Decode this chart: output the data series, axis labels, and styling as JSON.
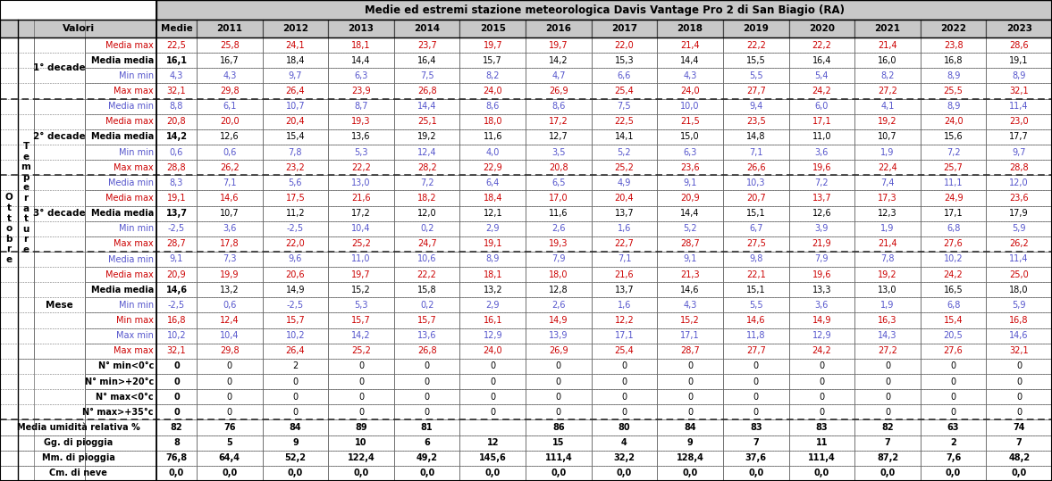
{
  "title": "Medie ed estremi stazione meteorologica Davis Vantage Pro 2 di San Biagio (RA)",
  "row_labels": [
    "Media max",
    "Media media",
    "Min min",
    "Max max",
    "Media min",
    "Media max",
    "Media media",
    "Min min",
    "Max max",
    "Media min",
    "Media max",
    "Media media",
    "Min min",
    "Max max",
    "Media min",
    "Media max",
    "Media media",
    "Min min",
    "Min max",
    "Max min",
    "Max max",
    "N° min<0°c",
    "N° min>+20°c",
    "N° max<0°c",
    "N° max>+35°c"
  ],
  "row_colors": [
    "red",
    "black",
    "blue",
    "red",
    "blue",
    "red",
    "black",
    "blue",
    "red",
    "blue",
    "red",
    "black",
    "blue",
    "red",
    "blue",
    "red",
    "black",
    "blue",
    "red",
    "blue",
    "red",
    "black",
    "black",
    "black",
    "black"
  ],
  "data": [
    [
      22.5,
      25.8,
      24.1,
      18.1,
      23.7,
      19.7,
      19.7,
      22.0,
      21.4,
      22.2,
      22.2,
      21.4,
      23.8,
      28.6
    ],
    [
      16.1,
      16.7,
      18.4,
      14.4,
      16.4,
      15.7,
      14.2,
      15.3,
      14.4,
      15.5,
      16.4,
      16.0,
      16.8,
      19.1
    ],
    [
      4.3,
      4.3,
      9.7,
      6.3,
      7.5,
      8.2,
      4.7,
      6.6,
      4.3,
      5.5,
      5.4,
      8.2,
      8.9,
      8.9
    ],
    [
      32.1,
      29.8,
      26.4,
      23.9,
      26.8,
      24.0,
      26.9,
      25.4,
      24.0,
      27.7,
      24.2,
      27.2,
      25.5,
      32.1
    ],
    [
      8.8,
      6.1,
      10.7,
      8.7,
      14.4,
      8.6,
      8.6,
      7.5,
      10.0,
      9.4,
      6.0,
      4.1,
      8.9,
      11.4
    ],
    [
      20.8,
      20.0,
      20.4,
      19.3,
      25.1,
      18.0,
      17.2,
      22.5,
      21.5,
      23.5,
      17.1,
      19.2,
      24.0,
      23.0
    ],
    [
      14.2,
      12.6,
      15.4,
      13.6,
      19.2,
      11.6,
      12.7,
      14.1,
      15.0,
      14.8,
      11.0,
      10.7,
      15.6,
      17.7
    ],
    [
      0.6,
      0.6,
      7.8,
      5.3,
      12.4,
      4.0,
      3.5,
      5.2,
      6.3,
      7.1,
      3.6,
      1.9,
      7.2,
      9.7
    ],
    [
      28.8,
      26.2,
      23.2,
      22.2,
      28.2,
      22.9,
      20.8,
      25.2,
      23.6,
      26.6,
      19.6,
      22.4,
      25.7,
      28.8
    ],
    [
      8.3,
      7.1,
      5.6,
      13.0,
      7.2,
      6.4,
      6.5,
      4.9,
      9.1,
      10.3,
      7.2,
      7.4,
      11.1,
      12.0
    ],
    [
      19.1,
      14.6,
      17.5,
      21.6,
      18.2,
      18.4,
      17.0,
      20.4,
      20.9,
      20.7,
      13.7,
      17.3,
      24.9,
      23.6
    ],
    [
      13.7,
      10.7,
      11.2,
      17.2,
      12.0,
      12.1,
      11.6,
      13.7,
      14.4,
      15.1,
      12.6,
      12.3,
      17.1,
      17.9
    ],
    [
      -2.5,
      3.6,
      -2.5,
      10.4,
      0.2,
      2.9,
      2.6,
      1.6,
      5.2,
      6.7,
      3.9,
      1.9,
      6.8,
      5.9
    ],
    [
      28.7,
      17.8,
      22.0,
      25.2,
      24.7,
      19.1,
      19.3,
      22.7,
      28.7,
      27.5,
      21.9,
      21.4,
      27.6,
      26.2
    ],
    [
      9.1,
      7.3,
      9.6,
      11.0,
      10.6,
      8.9,
      7.9,
      7.1,
      9.1,
      9.8,
      7.9,
      7.8,
      10.2,
      11.4
    ],
    [
      20.9,
      19.9,
      20.6,
      19.7,
      22.2,
      18.1,
      18.0,
      21.6,
      21.3,
      22.1,
      19.6,
      19.2,
      24.2,
      25.0
    ],
    [
      14.6,
      13.2,
      14.9,
      15.2,
      15.8,
      13.2,
      12.8,
      13.7,
      14.6,
      15.1,
      13.3,
      13.0,
      16.5,
      18.0
    ],
    [
      -2.5,
      0.6,
      -2.5,
      5.3,
      0.2,
      2.9,
      2.6,
      1.6,
      4.3,
      5.5,
      3.6,
      1.9,
      6.8,
      5.9
    ],
    [
      16.8,
      12.4,
      15.7,
      15.7,
      15.7,
      16.1,
      14.9,
      12.2,
      15.2,
      14.6,
      14.9,
      16.3,
      15.4,
      16.8
    ],
    [
      10.2,
      10.4,
      10.2,
      14.2,
      13.6,
      12.9,
      13.9,
      17.1,
      17.1,
      11.8,
      12.9,
      14.3,
      20.5,
      14.6
    ],
    [
      32.1,
      29.8,
      26.4,
      25.2,
      26.8,
      24.0,
      26.9,
      25.4,
      28.7,
      27.7,
      24.2,
      27.2,
      27.6,
      32.1
    ],
    [
      0,
      0,
      2,
      0,
      0,
      0,
      0,
      0,
      0,
      0,
      0,
      0,
      0,
      0
    ],
    [
      0,
      0,
      0,
      0,
      0,
      0,
      0,
      0,
      0,
      0,
      0,
      0,
      0,
      0
    ],
    [
      0,
      0,
      0,
      0,
      0,
      0,
      0,
      0,
      0,
      0,
      0,
      0,
      0,
      0
    ],
    [
      0,
      0,
      0,
      0,
      0,
      0,
      0,
      0,
      0,
      0,
      0,
      0,
      0,
      0
    ]
  ],
  "bottom_labels": [
    "Media umidità relativa %",
    "Gg. di pioggia",
    "Mm. di pioggia",
    "Cm. di neve"
  ],
  "bottom_data": [
    [
      82,
      76,
      84,
      89,
      81,
      "",
      86,
      80,
      84,
      83,
      83,
      82,
      63,
      74
    ],
    [
      8,
      5,
      9,
      10,
      6,
      12,
      15,
      4,
      9,
      7,
      11,
      7,
      2,
      7
    ],
    [
      76.8,
      64.4,
      52.2,
      122.4,
      49.2,
      145.6,
      111.4,
      32.2,
      128.4,
      37.6,
      111.4,
      87.2,
      7.6,
      48.2
    ],
    [
      0.0,
      0.0,
      0.0,
      0.0,
      0.0,
      0.0,
      0.0,
      0.0,
      0.0,
      0.0,
      0.0,
      0.0,
      0.0,
      0.0
    ]
  ],
  "years": [
    "Medie",
    "2011",
    "2012",
    "2013",
    "2014",
    "2015",
    "2016",
    "2017",
    "2018",
    "2019",
    "2020",
    "2021",
    "2022",
    "2023"
  ],
  "decade_groups": [
    [
      0,
      3,
      "1° decade"
    ],
    [
      4,
      8,
      "2° decade"
    ],
    [
      9,
      13,
      "3° decade"
    ],
    [
      14,
      20,
      "Mese"
    ]
  ],
  "counts_rows": [
    21,
    22,
    23,
    24
  ],
  "ottobre_text": "O\nt\nt\no\nb\nr\ne",
  "temperature_text": "T\ne\nm\np\ne\nr\na\nt\nu\nr\ne",
  "RED": "#cc0000",
  "BLUE": "#5555cc",
  "BLACK": "#000000",
  "HEADER_BG": "#c8c8c8",
  "WHITE": "#ffffff",
  "GRAY_LINE": "#666666",
  "DARK_LINE": "#222222"
}
